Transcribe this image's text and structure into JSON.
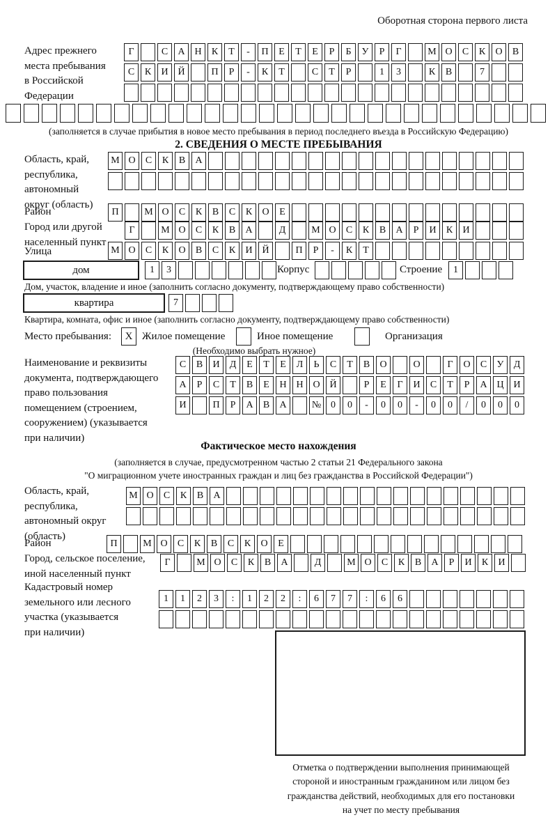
{
  "header": {
    "note": "Оборотная сторона первого листа"
  },
  "section1": {
    "label": "Адрес прежнего\nместа пребывания\nв Российской\nФедерации",
    "rows": [
      "Г САНКТ-ПЕТЕРБУРГ МОСКОВ",
      "СКИЙ ПР-КТ СТР 13 КВ 7  ",
      "                        "
    ],
    "full_row": "                              ",
    "caption": "(заполняется в случае прибытия в новое место пребывания в период последнего въезда в Российскую Федерацию)"
  },
  "section2": {
    "title": "2. СВЕДЕНИЯ О МЕСТЕ ПРЕБЫВАНИЯ",
    "region": {
      "label": "Область, край,\nреспублика,\nавтономный\nокруг (область)",
      "rows": [
        "МОСКВА                   ",
        "                         "
      ]
    },
    "district": {
      "label": "Район",
      "row": "П МОСКВСКОЕ              "
    },
    "city": {
      "label": "Город или другой\nнаселенный пункт",
      "row": "Г МОСКВА Д МОСКВАРИКИ   "
    },
    "street": {
      "label": "Улица",
      "row": "МОСКОВСКИЙ ПР-КТ         "
    },
    "house": {
      "box_label": "дом",
      "cells": "13      ",
      "korpus_label": "Корпус",
      "korpus_cells": "     ",
      "stroenie_label": "Строение",
      "stroenie_cells": "1   ",
      "caption": "Дом, участок, владение и иное (заполнить согласно документу, подтверждающему право собственности)"
    },
    "apartment": {
      "box_label": "квартира",
      "cells": "7   ",
      "caption": "Квартира, комната, офис и иное (заполнить согласно документу, подтверждающему право собственности)"
    },
    "stay_type": {
      "label": "Место пребывания:",
      "options": [
        {
          "label": "Жилое помещение",
          "mark": "X"
        },
        {
          "label": "Иное помещение",
          "mark": ""
        },
        {
          "label": "Организация",
          "mark": ""
        }
      ],
      "hint": "(Необходимо выбрать нужное)"
    },
    "document": {
      "label": "Наименование и реквизиты\nдокумента, подтверждающего\nправо пользования\nпомещением (строением,\nсооружением) (указывается\nпри наличии)",
      "rows": [
        "СВИДЕТЕЛЬСТВО О ГОСУД",
        "АРСТВЕННОЙ РЕГИСТРАЦИ",
        "И ПРАВА №00-00-00/000"
      ]
    }
  },
  "actual_location": {
    "title": "Фактическое место нахождения",
    "subtitle1": "(заполняется в случае, предусмотренном частью 2 статьи 21 Федерального закона",
    "subtitle2": "\"О миграционном учете иностранных граждан и лиц без гражданства в Российской Федерации\")",
    "region": {
      "label": "Область, край,\nреспублика,\nавтономный округ\n(область)",
      "rows": [
        "МОСКВА                  ",
        "                        "
      ]
    },
    "district": {
      "label": "Район",
      "row": "П МОСКВСКОЕ              "
    },
    "city": {
      "label": "Город, сельское поселение,\nиной населенный пункт",
      "row": "Г МОСКВА Д МОСКВАРИКИ "
    },
    "cadastral": {
      "label": "Кадастровый номер\nземельного или лесного\nучастка (указывается\nпри наличии)",
      "rows": [
        "1123:122:677:66       ",
        "                      "
      ]
    },
    "stamp": {
      "caption": "Отметка о подтверждении выполнения принимающей\nстороной и иностранным гражданином или лицом без\nгражданства действий, необходимых для его постановки\nна учет по месту пребывания"
    }
  }
}
